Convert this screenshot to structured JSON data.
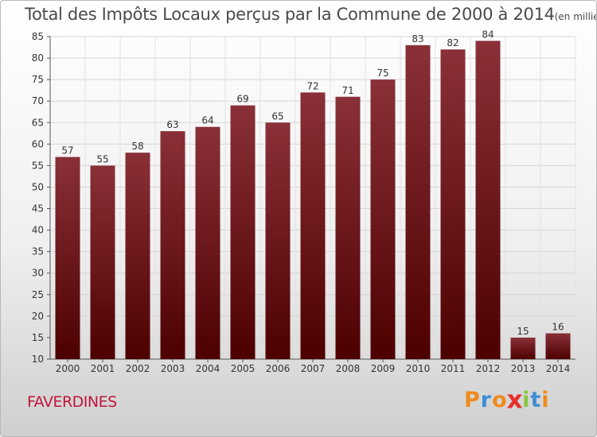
{
  "chart_data": {
    "type": "bar",
    "title": "Total des Impôts Locaux perçus par la Commune de 2000 à 2014",
    "subtitle": "(en milliers d'€)",
    "categories": [
      "2000",
      "2001",
      "2002",
      "2003",
      "2004",
      "2005",
      "2006",
      "2007",
      "2008",
      "2009",
      "2010",
      "2011",
      "2012",
      "2013",
      "2014"
    ],
    "values": [
      57,
      55,
      58,
      63,
      64,
      69,
      65,
      72,
      71,
      75,
      83,
      82,
      84,
      15,
      16
    ],
    "value_labels": [
      "57",
      "55",
      "58",
      "63",
      "64",
      "69",
      "65",
      "72",
      "71",
      "75",
      "83",
      "82",
      "84",
      "15",
      "16"
    ],
    "ylim": [
      10,
      85
    ],
    "yticks": [
      "10",
      "15",
      "20",
      "25",
      "30",
      "35",
      "40",
      "45",
      "50",
      "55",
      "60",
      "65",
      "70",
      "75",
      "80",
      "85"
    ],
    "xlabel": "",
    "ylabel": "",
    "grid": true,
    "bar_color": "#7a1f2b"
  },
  "footer": {
    "commune_name": "FAVERDINES",
    "logo_text": "Proxiti"
  },
  "colors": {
    "commune": "#c0143c",
    "logo_letters": [
      "#f08a1c",
      "#3d8fd6",
      "#f08a1c",
      "#e8302a",
      "#8cc63f",
      "#3d8fd6",
      "#f08a1c"
    ]
  }
}
